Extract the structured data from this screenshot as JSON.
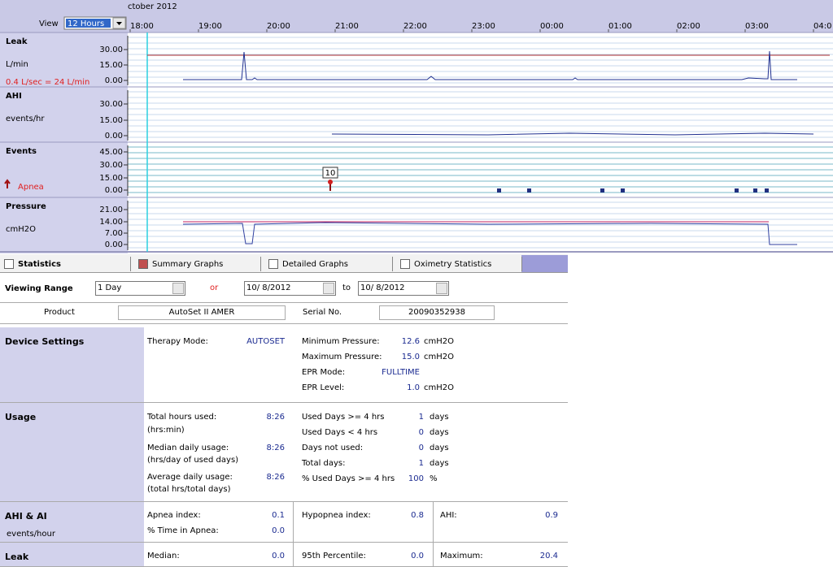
{
  "header": {
    "date": "ctober 2012",
    "view_label": "View",
    "view_value": "12 Hours",
    "times": [
      "18:00",
      "19:00",
      "20:00",
      "21:00",
      "22:00",
      "23:00",
      "00:00",
      "01:00",
      "02:00",
      "03:00",
      "04:0"
    ]
  },
  "panels": [
    {
      "title": "Leak",
      "unit": "L/min",
      "note": "0.4 L/sec = 24 L/min",
      "ticks": [
        "30.00",
        "15.00",
        "0.00"
      ]
    },
    {
      "title": "AHI",
      "unit": "events/hr",
      "ticks": [
        "30.00",
        "15.00",
        "0.00"
      ]
    },
    {
      "title": "Events",
      "legend": "Apnea",
      "annotation": "10",
      "ticks": [
        "45.00",
        "30.00",
        "15.00",
        "0.00"
      ]
    },
    {
      "title": "Pressure",
      "unit": "cmH2O",
      "ticks": [
        "21.00",
        "14.00",
        "7.00",
        "0.00"
      ]
    }
  ],
  "tabs": [
    "Statistics",
    "Summary Graphs",
    "Detailed Graphs",
    "Oximetry Statistics"
  ],
  "range": {
    "label": "Viewing Range",
    "period": "1 Day",
    "or": "or",
    "from": "10/ 8/2012",
    "to_label": "to",
    "to": "10/ 8/2012"
  },
  "device": {
    "product_label": "Product",
    "product": "AutoSet II AMER",
    "serial_label": "Serial No.",
    "serial": "20090352938"
  },
  "device_settings": {
    "title": "Device Settings",
    "therapy_mode_label": "Therapy Mode:",
    "therapy_mode": "AUTOSET",
    "rows": [
      [
        "Minimum Pressure:",
        "12.6",
        "cmH2O"
      ],
      [
        "Maximum Pressure:",
        "15.0",
        "cmH2O"
      ],
      [
        "EPR Mode:",
        "FULLTIME"
      ],
      [
        "EPR Level:",
        "1.0",
        "cmH2O"
      ]
    ]
  },
  "usage": {
    "title": "Usage",
    "left": [
      [
        "Total hours used:",
        "(hrs:min)",
        "8:26"
      ],
      [
        "Median daily usage:",
        "(hrs/day of used days)",
        "8:26"
      ],
      [
        "Average daily usage:",
        "(total hrs/total days)",
        "8:26"
      ]
    ],
    "right": [
      [
        "Used Days >= 4 hrs",
        "1",
        "days"
      ],
      [
        "Used Days < 4 hrs",
        "0",
        "days"
      ],
      [
        "Days not used:",
        "0",
        "days"
      ],
      [
        "Total days:",
        "1",
        "days"
      ],
      [
        "% Used Days >= 4 hrs",
        "100",
        "%"
      ]
    ]
  },
  "ahi": {
    "title": "AHI & AI",
    "subtitle": "events/hour",
    "rows": [
      [
        "Apnea index:",
        "0.1"
      ],
      [
        "% Time in Apnea:",
        "0.0"
      ],
      [
        "Hypopnea index:",
        "0.8"
      ],
      [
        "AHI:",
        "0.9"
      ]
    ]
  },
  "leak": {
    "title": "Leak",
    "rows": [
      [
        "Median:",
        "0.0"
      ],
      [
        "95th Percentile:",
        "0.0"
      ],
      [
        "Maximum:",
        "20.4"
      ]
    ]
  }
}
